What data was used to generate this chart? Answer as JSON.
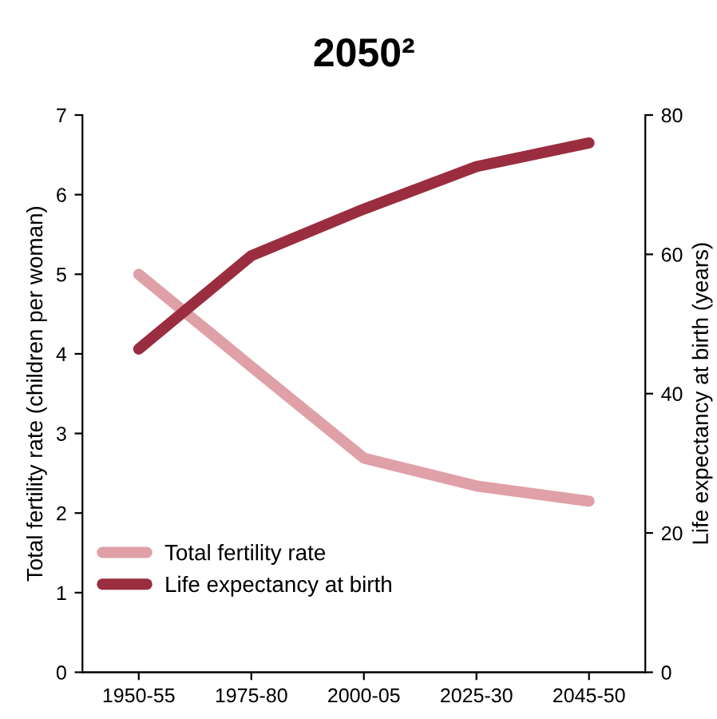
{
  "chart_data": {
    "type": "line",
    "title": "2050²",
    "categories": [
      "1950-55",
      "1975-80",
      "2000-05",
      "2025-30",
      "2045-50"
    ],
    "series": [
      {
        "name": "Total fertility rate",
        "color": "#e0a0a8",
        "values": [
          5.0,
          3.84,
          2.69,
          2.34,
          2.15
        ]
      },
      {
        "name": "Life expectancy at birth",
        "color": "#9b2d40",
        "axis": "y2",
        "values": [
          46.4,
          59.8,
          66.5,
          72.6,
          76.0
        ]
      }
    ],
    "ylabel": "Total fertility rate (children per woman)",
    "y2label": "Life expectancy at birth (years)",
    "ylim": [
      0,
      7
    ],
    "yticks": [
      0,
      1,
      2,
      3,
      4,
      5,
      6,
      7
    ],
    "y2lim": [
      0,
      80
    ],
    "y2ticks": [
      0,
      20,
      40,
      60,
      80
    ],
    "grid": false,
    "legend": "bottom left",
    "marker": "none",
    "line_style": "solid"
  }
}
